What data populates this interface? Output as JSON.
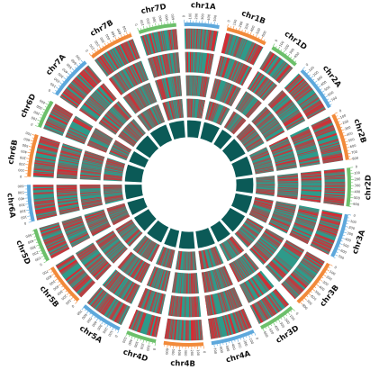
{
  "colors": {
    "teal": "#2e9a8a",
    "teal_dark": "#1f7f73",
    "inner_dark": "#0b5a57",
    "red": "#e8212b",
    "palette": [
      "#5da8dc",
      "#f28a3a",
      "#6cc06a"
    ]
  },
  "chromosomes": [
    {
      "name": "chr1A",
      "length": 590,
      "color": "#5da8dc"
    },
    {
      "name": "chr1B",
      "length": 690,
      "color": "#f28a3a"
    },
    {
      "name": "chr1D",
      "length": 490,
      "color": "#6cc06a"
    },
    {
      "name": "chr2A",
      "length": 780,
      "color": "#5da8dc"
    },
    {
      "name": "chr2B",
      "length": 800,
      "color": "#f28a3a"
    },
    {
      "name": "chr2D",
      "length": 650,
      "color": "#6cc06a"
    },
    {
      "name": "chr3A",
      "length": 750,
      "color": "#5da8dc"
    },
    {
      "name": "chr3B",
      "length": 830,
      "color": "#f28a3a"
    },
    {
      "name": "chr3D",
      "length": 620,
      "color": "#6cc06a"
    },
    {
      "name": "chr4A",
      "length": 740,
      "color": "#5da8dc"
    },
    {
      "name": "chr4B",
      "length": 670,
      "color": "#f28a3a"
    },
    {
      "name": "chr4D",
      "length": 510,
      "color": "#6cc06a"
    },
    {
      "name": "chr5A",
      "length": 710,
      "color": "#5da8dc"
    },
    {
      "name": "chr5B",
      "length": 710,
      "color": "#f28a3a"
    },
    {
      "name": "chr5D",
      "length": 570,
      "color": "#6cc06a"
    },
    {
      "name": "chr6A",
      "length": 620,
      "color": "#5da8dc"
    },
    {
      "name": "chr6B",
      "length": 720,
      "color": "#f28a3a"
    },
    {
      "name": "chr6D",
      "length": 480,
      "color": "#6cc06a"
    },
    {
      "name": "chr7A",
      "length": 740,
      "color": "#5da8dc"
    },
    {
      "name": "chr7B",
      "length": 760,
      "color": "#f28a3a"
    },
    {
      "name": "chr7D",
      "length": 640,
      "color": "#6cc06a"
    }
  ],
  "tick_step": 100,
  "track_count": 5
}
